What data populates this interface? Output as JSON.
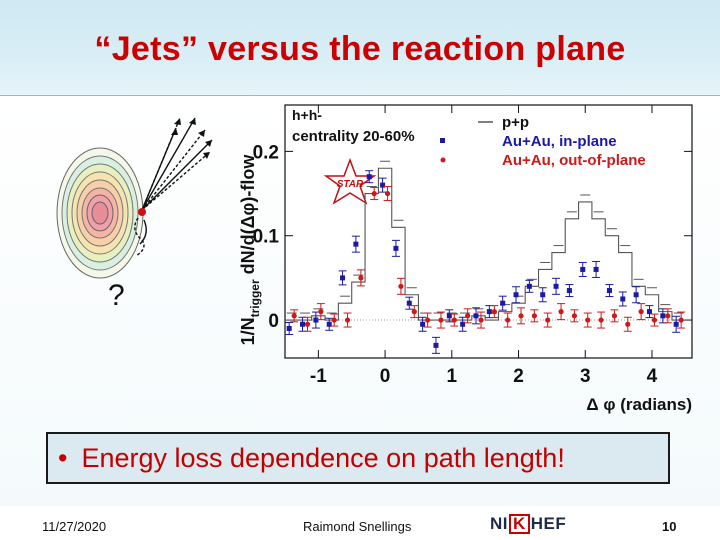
{
  "slide": {
    "title": "“Jets” versus the reaction plane",
    "bullet_symbol": "•",
    "bullet": "Energy loss dependence on path length!",
    "footer": {
      "date": "11/27/2020",
      "author": "Raimond Snellings",
      "page": "10"
    },
    "logo": {
      "left": "NI",
      "mid": "K",
      "right": "HEF"
    },
    "colors": {
      "title": "#cc0000",
      "in_plane": "#1a1aa6",
      "out_of_plane": "#d01818"
    }
  },
  "diagram": {
    "question_mark": "?"
  },
  "chart_data": {
    "type": "scatter",
    "title": "h+h- centrality 20-60%",
    "header_top": "h+h-",
    "header_centrality": "centrality 20-60%",
    "star_label": "STAR",
    "ylabel": "1/Ntrigger dN/d(Δφ)-flow",
    "ylabel_pre": "1/N",
    "ylabel_sub": "trigger",
    "ylabel_post": " dN/d(Δφ)-flow",
    "xlabel": "Δ φ (radians)",
    "xlim": [
      -1.5,
      4.6
    ],
    "ylim": [
      -0.045,
      0.255
    ],
    "xticks": [
      -1,
      0,
      1,
      2,
      3,
      4
    ],
    "xtick_labels": [
      "-1",
      "0",
      "1",
      "2",
      "3",
      "4"
    ],
    "yticks": [
      0,
      0.1,
      0.2
    ],
    "ytick_labels": [
      "0",
      "0.1",
      "0.2"
    ],
    "legend_position": "top-right",
    "x": [
      -1.4,
      -1.2,
      -1.0,
      -0.8,
      -0.6,
      -0.4,
      -0.2,
      0.0,
      0.2,
      0.4,
      0.6,
      0.8,
      1.0,
      1.2,
      1.4,
      1.6,
      1.8,
      2.0,
      2.2,
      2.4,
      2.6,
      2.8,
      3.0,
      3.2,
      3.4,
      3.6,
      3.8,
      4.0,
      4.2,
      4.4
    ],
    "series": [
      {
        "name": "p+p",
        "style": "step",
        "color": "#555555",
        "values": [
          0.0,
          0.0,
          0.005,
          0.0,
          0.02,
          0.045,
          0.15,
          0.18,
          0.11,
          0.03,
          0.0,
          0.0,
          0.0,
          0.0,
          0.005,
          0.0,
          0.01,
          0.02,
          0.04,
          0.06,
          0.08,
          0.12,
          0.14,
          0.12,
          0.1,
          0.08,
          0.04,
          0.03,
          0.01,
          0.0
        ]
      },
      {
        "name": "Au+Au, in-plane",
        "style": "square",
        "color": "#1a1aa6",
        "values": [
          -0.01,
          -0.005,
          0.0,
          -0.005,
          0.05,
          0.09,
          0.17,
          0.16,
          0.085,
          0.02,
          -0.005,
          -0.03,
          0.005,
          -0.005,
          0.005,
          0.01,
          0.02,
          0.03,
          0.04,
          0.03,
          0.04,
          0.035,
          0.06,
          0.06,
          0.035,
          0.025,
          0.03,
          0.01,
          0.005,
          -0.005
        ]
      },
      {
        "name": "Au+Au, out-of-plane",
        "style": "circle",
        "color": "#d01818",
        "values": [
          0.005,
          -0.005,
          0.01,
          0.0,
          0.0,
          0.05,
          0.15,
          0.15,
          0.04,
          0.01,
          0.0,
          0.0,
          0.0,
          0.005,
          0.0,
          0.01,
          0.0,
          0.005,
          0.005,
          0.0,
          0.01,
          0.005,
          0.0,
          0.0,
          0.005,
          -0.005,
          0.01,
          0.0,
          0.005,
          0.0
        ]
      }
    ]
  }
}
